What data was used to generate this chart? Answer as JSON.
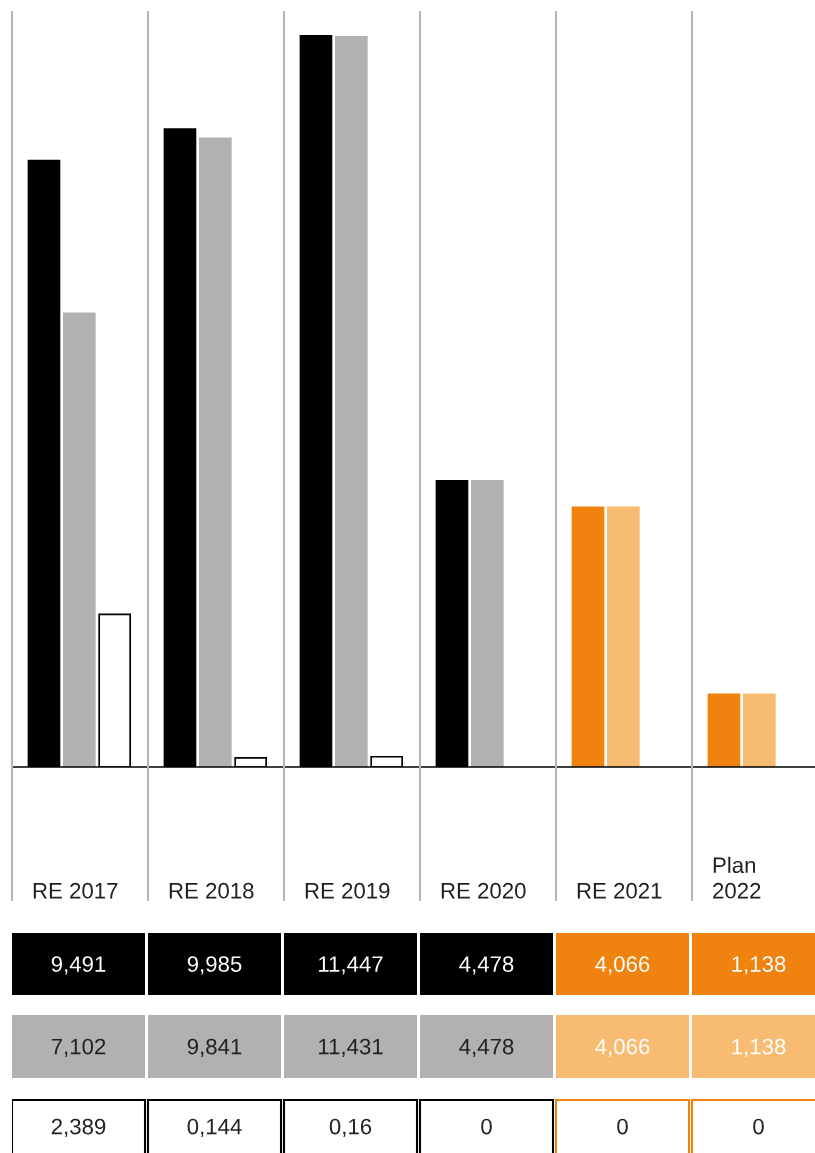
{
  "chart_data": {
    "type": "bar",
    "categories": [
      "RE 2017",
      "RE 2018",
      "RE 2019",
      "RE 2020",
      "RE 2021",
      "Plan\n2022"
    ],
    "series": [
      {
        "colors": [
          "#000000",
          "#000000",
          "#000000",
          "#000000",
          "#f0820f",
          "#f0820f"
        ],
        "values": [
          9.491,
          9.985,
          11.447,
          4.478,
          4.066,
          1.138
        ],
        "value_labels": [
          "9,491",
          "9,985",
          "11,447",
          "4,478",
          "4,066",
          "1,138"
        ]
      },
      {
        "colors": [
          "#b1b1b3",
          "#b1b1b3",
          "#b1b1b3",
          "#b1b1b3",
          "#f8bb72",
          "#f8bb72"
        ],
        "values": [
          7.102,
          9.841,
          11.431,
          4.478,
          4.066,
          1.138
        ],
        "value_labels": [
          "7,102",
          "9,841",
          "11,431",
          "4,478",
          "4,066",
          "1,138"
        ]
      },
      {
        "colors": [
          "#ffffff",
          "#ffffff",
          "#ffffff",
          "#ffffff",
          "#ffffff",
          "#ffffff"
        ],
        "values": [
          2.389,
          0.144,
          0.16,
          0,
          0,
          0
        ],
        "value_labels": [
          "2,389",
          "0,144",
          "0,16",
          "0",
          "0",
          "0"
        ]
      }
    ],
    "legend": false
  }
}
